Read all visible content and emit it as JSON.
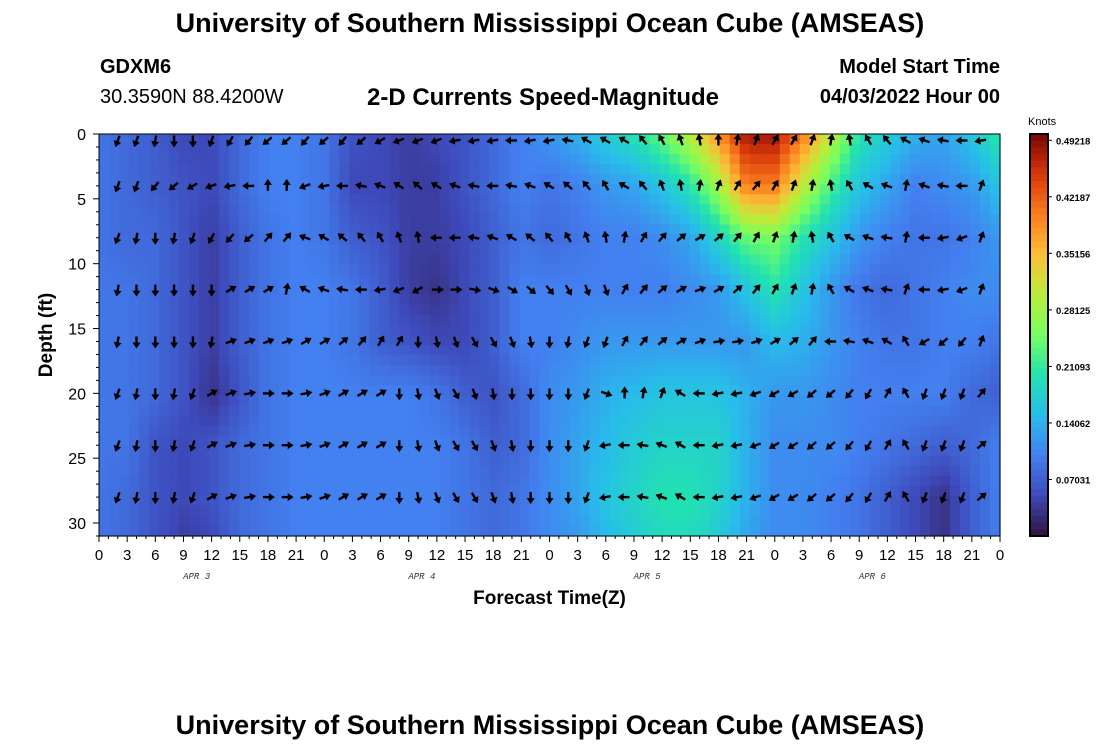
{
  "header": {
    "title": "University of Southern Mississippi Ocean Cube (AMSEAS)",
    "station_id": "GDXM6",
    "coordinates": "30.3590N  88.4200W",
    "product": "2-D Currents Speed-Magnitude",
    "model_start_label": "Model Start Time",
    "model_start_value": "04/03/2022 Hour 00"
  },
  "footer": {
    "title": "University of Southern Mississippi Ocean Cube (AMSEAS)"
  },
  "chart_data": {
    "type": "heatmap",
    "xlabel": "Forecast Time(Z)",
    "ylabel": "Depth (ft)",
    "x_tick_labels": [
      "0",
      "3",
      "6",
      "9",
      "12",
      "15",
      "18",
      "21",
      "0",
      "3",
      "6",
      "9",
      "12",
      "15",
      "18",
      "21",
      "0",
      "3",
      "6",
      "9",
      "12",
      "15",
      "18",
      "21",
      "0",
      "3",
      "6",
      "9",
      "12",
      "15",
      "18",
      "21",
      "0"
    ],
    "day_labels": [
      {
        "label": "APR 3",
        "hour": 9
      },
      {
        "label": "APR 4",
        "hour": 33
      },
      {
        "label": "APR 5",
        "hour": 57
      },
      {
        "label": "APR 6",
        "hour": 81
      }
    ],
    "x_range_hours": [
      0,
      96
    ],
    "y_range_ft": [
      0,
      31
    ],
    "y_ticks": [
      0,
      5,
      10,
      15,
      20,
      25,
      30
    ],
    "y_reversed": true,
    "colorbar": {
      "title": "Knots",
      "ticks": [
        "0.49218",
        "0.42187",
        "0.35156",
        "0.28125",
        "0.21093",
        "0.14062",
        "0.07031"
      ],
      "tick_values": [
        0.49218,
        0.42187,
        0.35156,
        0.28125,
        0.21093,
        0.14062,
        0.07031
      ],
      "range": [
        0,
        0.5
      ],
      "colormap": "turbo"
    },
    "speed_grid": {
      "hours": [
        0,
        3,
        6,
        9,
        12,
        15,
        18,
        21,
        24,
        27,
        30,
        33,
        36,
        39,
        42,
        45,
        48,
        51,
        54,
        57,
        60,
        63,
        66,
        69,
        72,
        75,
        78,
        81,
        84,
        87,
        90,
        93,
        96
      ],
      "depths_ft": [
        0,
        4,
        8,
        12,
        16,
        20,
        24,
        28,
        31
      ],
      "values_knots": [
        [
          0.09,
          0.08,
          0.07,
          0.05,
          0.05,
          0.08,
          0.1,
          0.1,
          0.09,
          0.06,
          0.05,
          0.04,
          0.05,
          0.06,
          0.08,
          0.1,
          0.12,
          0.14,
          0.17,
          0.2,
          0.24,
          0.3,
          0.38,
          0.48,
          0.48,
          0.4,
          0.3,
          0.2,
          0.17,
          0.14,
          0.13,
          0.16,
          0.21
        ],
        [
          0.09,
          0.08,
          0.07,
          0.06,
          0.05,
          0.08,
          0.1,
          0.1,
          0.09,
          0.05,
          0.05,
          0.04,
          0.04,
          0.06,
          0.08,
          0.1,
          0.09,
          0.1,
          0.12,
          0.13,
          0.16,
          0.2,
          0.28,
          0.4,
          0.4,
          0.3,
          0.22,
          0.16,
          0.13,
          0.1,
          0.11,
          0.12,
          0.16
        ],
        [
          0.09,
          0.08,
          0.08,
          0.06,
          0.04,
          0.07,
          0.09,
          0.1,
          0.09,
          0.07,
          0.06,
          0.04,
          0.04,
          0.05,
          0.07,
          0.09,
          0.08,
          0.09,
          0.1,
          0.1,
          0.11,
          0.13,
          0.18,
          0.24,
          0.25,
          0.2,
          0.16,
          0.12,
          0.1,
          0.09,
          0.09,
          0.1,
          0.12
        ],
        [
          0.09,
          0.09,
          0.08,
          0.06,
          0.04,
          0.07,
          0.09,
          0.1,
          0.1,
          0.09,
          0.07,
          0.04,
          0.03,
          0.05,
          0.07,
          0.1,
          0.1,
          0.1,
          0.1,
          0.1,
          0.1,
          0.11,
          0.12,
          0.16,
          0.2,
          0.16,
          0.12,
          0.09,
          0.08,
          0.09,
          0.1,
          0.11,
          0.11
        ],
        [
          0.09,
          0.09,
          0.08,
          0.06,
          0.04,
          0.07,
          0.09,
          0.1,
          0.1,
          0.09,
          0.07,
          0.06,
          0.05,
          0.05,
          0.07,
          0.1,
          0.1,
          0.11,
          0.12,
          0.12,
          0.12,
          0.12,
          0.12,
          0.12,
          0.15,
          0.14,
          0.12,
          0.1,
          0.09,
          0.09,
          0.1,
          0.1,
          0.09
        ],
        [
          0.09,
          0.09,
          0.08,
          0.06,
          0.03,
          0.06,
          0.09,
          0.1,
          0.1,
          0.1,
          0.1,
          0.1,
          0.09,
          0.07,
          0.06,
          0.08,
          0.11,
          0.12,
          0.14,
          0.15,
          0.16,
          0.16,
          0.16,
          0.14,
          0.12,
          0.12,
          0.11,
          0.1,
          0.1,
          0.1,
          0.1,
          0.08,
          0.07
        ],
        [
          0.09,
          0.09,
          0.06,
          0.05,
          0.06,
          0.08,
          0.09,
          0.1,
          0.1,
          0.1,
          0.1,
          0.1,
          0.1,
          0.09,
          0.07,
          0.08,
          0.11,
          0.13,
          0.15,
          0.17,
          0.18,
          0.18,
          0.18,
          0.14,
          0.11,
          0.11,
          0.11,
          0.1,
          0.09,
          0.08,
          0.07,
          0.08,
          0.1
        ],
        [
          0.09,
          0.08,
          0.06,
          0.05,
          0.06,
          0.08,
          0.09,
          0.1,
          0.1,
          0.1,
          0.1,
          0.1,
          0.1,
          0.09,
          0.08,
          0.09,
          0.11,
          0.13,
          0.16,
          0.18,
          0.2,
          0.2,
          0.18,
          0.14,
          0.11,
          0.11,
          0.1,
          0.09,
          0.07,
          0.05,
          0.03,
          0.07,
          0.1
        ],
        [
          0.09,
          0.08,
          0.06,
          0.04,
          0.05,
          0.08,
          0.09,
          0.1,
          0.1,
          0.1,
          0.1,
          0.1,
          0.1,
          0.09,
          0.08,
          0.09,
          0.11,
          0.12,
          0.15,
          0.17,
          0.19,
          0.19,
          0.17,
          0.13,
          0.11,
          0.11,
          0.1,
          0.09,
          0.07,
          0.05,
          0.03,
          0.07,
          0.1
        ]
      ]
    },
    "vectors": {
      "note": "arrow direction in degrees (0 = up/north, 90 = right/east) at hours x depths",
      "hours": [
        2,
        4,
        6,
        8,
        10,
        12,
        14,
        16,
        18,
        20,
        22,
        24,
        26,
        28,
        30,
        32,
        34,
        36,
        38,
        40,
        42,
        44,
        46,
        48,
        50,
        52,
        54,
        56,
        58,
        60,
        62,
        64,
        66,
        68,
        70,
        72,
        74,
        76,
        78,
        80,
        82,
        84,
        86,
        88,
        90,
        92,
        94
      ],
      "depths_ft": [
        0.5,
        4,
        8,
        12,
        16,
        20,
        24,
        28
      ],
      "directions_deg": [
        [
          200,
          200,
          190,
          180,
          180,
          200,
          210,
          220,
          230,
          230,
          220,
          230,
          220,
          230,
          240,
          250,
          250,
          250,
          260,
          260,
          260,
          270,
          260,
          260,
          280,
          300,
          300,
          300,
          320,
          330,
          340,
          350,
          0,
          10,
          20,
          30,
          30,
          20,
          10,
          350,
          330,
          320,
          300,
          290,
          280,
          270,
          260
        ],
        [
          200,
          200,
          220,
          230,
          240,
          250,
          260,
          270,
          0,
          0,
          250,
          260,
          270,
          280,
          290,
          300,
          310,
          300,
          290,
          280,
          270,
          280,
          290,
          300,
          310,
          320,
          330,
          300,
          320,
          340,
          350,
          10,
          20,
          30,
          40,
          30,
          20,
          10,
          350,
          330,
          300,
          290,
          10,
          290,
          280,
          270,
          20
        ],
        [
          200,
          190,
          180,
          190,
          200,
          210,
          220,
          230,
          40,
          40,
          290,
          300,
          310,
          320,
          330,
          340,
          350,
          270,
          270,
          280,
          290,
          300,
          310,
          320,
          330,
          340,
          350,
          10,
          30,
          40,
          50,
          60,
          50,
          40,
          30,
          20,
          10,
          350,
          330,
          300,
          290,
          280,
          10,
          270,
          260,
          250,
          20
        ],
        [
          190,
          180,
          180,
          180,
          180,
          180,
          60,
          60,
          60,
          10,
          300,
          290,
          280,
          270,
          260,
          250,
          240,
          90,
          90,
          100,
          110,
          120,
          130,
          140,
          150,
          160,
          160,
          30,
          40,
          50,
          60,
          70,
          60,
          50,
          40,
          30,
          20,
          10,
          330,
          300,
          290,
          280,
          20,
          270,
          260,
          250,
          20
        ],
        [
          190,
          180,
          180,
          180,
          180,
          190,
          70,
          70,
          70,
          70,
          60,
          60,
          50,
          40,
          30,
          30,
          180,
          170,
          160,
          150,
          150,
          160,
          170,
          180,
          190,
          200,
          200,
          30,
          40,
          50,
          60,
          70,
          80,
          80,
          70,
          60,
          50,
          40,
          270,
          280,
          290,
          300,
          330,
          240,
          230,
          220,
          20
        ],
        [
          200,
          190,
          180,
          190,
          200,
          60,
          70,
          80,
          90,
          90,
          80,
          70,
          60,
          60,
          60,
          180,
          170,
          160,
          150,
          160,
          170,
          180,
          180,
          180,
          180,
          200,
          110,
          0,
          10,
          20,
          300,
          270,
          260,
          260,
          250,
          240,
          240,
          230,
          230,
          220,
          210,
          30,
          330,
          200,
          200,
          200,
          40
        ],
        [
          200,
          190,
          180,
          190,
          200,
          60,
          70,
          80,
          90,
          90,
          80,
          70,
          60,
          60,
          60,
          180,
          170,
          160,
          150,
          150,
          160,
          170,
          180,
          180,
          180,
          200,
          260,
          270,
          280,
          290,
          300,
          270,
          260,
          260,
          250,
          240,
          240,
          230,
          230,
          220,
          210,
          30,
          330,
          200,
          200,
          200,
          50
        ],
        [
          200,
          190,
          180,
          190,
          200,
          60,
          70,
          80,
          90,
          90,
          80,
          70,
          60,
          60,
          60,
          180,
          170,
          160,
          150,
          150,
          160,
          170,
          180,
          180,
          180,
          200,
          260,
          270,
          280,
          290,
          300,
          270,
          260,
          260,
          250,
          240,
          240,
          230,
          230,
          220,
          210,
          30,
          330,
          200,
          200,
          200,
          50
        ]
      ]
    }
  }
}
